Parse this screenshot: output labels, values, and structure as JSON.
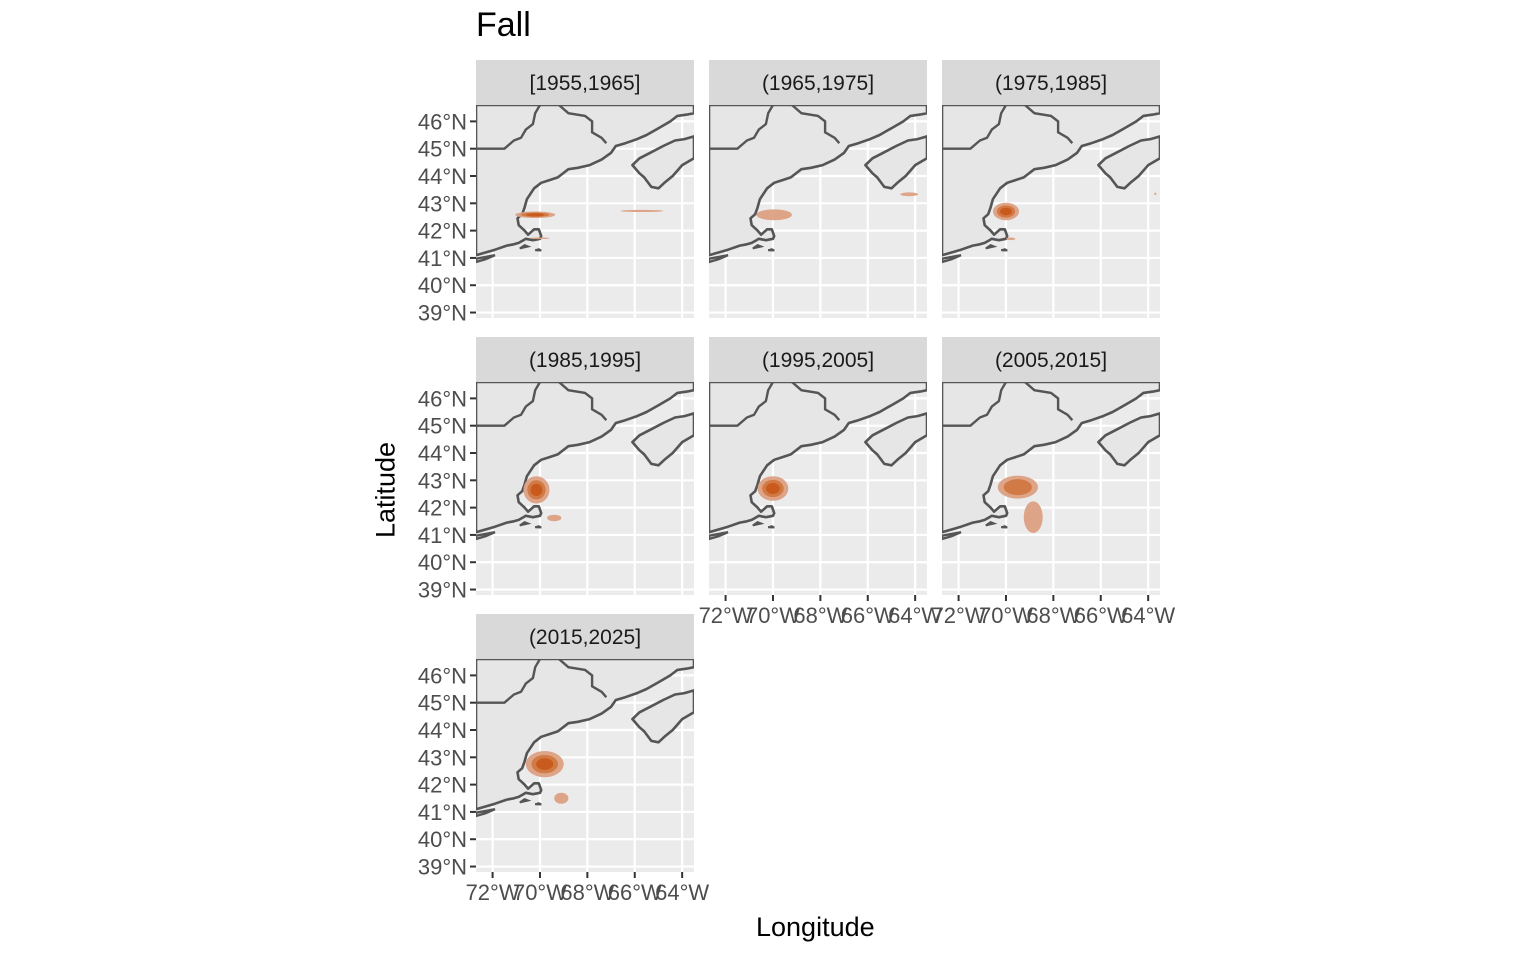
{
  "title": "Fall",
  "x_axis_title": "Longitude",
  "y_axis_title": "Latitude",
  "colors": {
    "panel_bg": "#ebebeb",
    "grid": "#ffffff",
    "strip_bg": "#d9d9d9",
    "land": "#e6e6e6",
    "coastline": "#555555",
    "density_low": "#dca083",
    "density_mid": "#d0763f",
    "density_high": "#c8561a"
  },
  "chart_data": {
    "type": "faceted density map",
    "facet_variable": "decade",
    "xlim": [
      -72.7,
      -63.5
    ],
    "ylim": [
      38.8,
      46.6
    ],
    "x_ticks": [
      -72,
      -70,
      -68,
      -66,
      -64
    ],
    "x_tick_labels": [
      "72°W",
      "70°W",
      "68°W",
      "66°W",
      "64°W"
    ],
    "y_ticks": [
      46,
      45,
      44,
      43,
      42,
      41,
      40,
      39
    ],
    "y_tick_labels": [
      "46°N",
      "45°N",
      "44°N",
      "43°N",
      "42°N",
      "41°N",
      "40°N",
      "39°N"
    ],
    "facets": [
      {
        "label": "[1955,1965]",
        "blobs": [
          {
            "lon": -70.2,
            "lat": 42.58,
            "rx": 0.85,
            "ry": 0.12,
            "level": 3
          },
          {
            "lon": -65.7,
            "lat": 42.72,
            "rx": 0.9,
            "ry": 0.04,
            "level": 1
          },
          {
            "lon": -70.0,
            "lat": 41.72,
            "rx": 0.4,
            "ry": 0.03,
            "level": 1
          }
        ]
      },
      {
        "label": "(1965,1975]",
        "blobs": [
          {
            "lon": -69.95,
            "lat": 42.58,
            "rx": 0.75,
            "ry": 0.2,
            "level": 1
          },
          {
            "lon": -64.25,
            "lat": 43.33,
            "rx": 0.38,
            "ry": 0.07,
            "level": 1
          }
        ]
      },
      {
        "label": "(1975,1985]",
        "blobs": [
          {
            "lon": -70.0,
            "lat": 42.7,
            "rx": 0.55,
            "ry": 0.32,
            "level": 3
          },
          {
            "lon": -69.8,
            "lat": 41.7,
            "rx": 0.2,
            "ry": 0.05,
            "level": 1
          },
          {
            "lon": -63.7,
            "lat": 43.35,
            "rx": 0.05,
            "ry": 0.04,
            "level": 1
          }
        ]
      },
      {
        "label": "(1985,1995]",
        "blobs": [
          {
            "lon": -70.15,
            "lat": 42.65,
            "rx": 0.55,
            "ry": 0.5,
            "level": 3
          },
          {
            "lon": -69.4,
            "lat": 41.62,
            "rx": 0.3,
            "ry": 0.12,
            "level": 1
          }
        ]
      },
      {
        "label": "(1995,2005]",
        "blobs": [
          {
            "lon": -70.0,
            "lat": 42.7,
            "rx": 0.65,
            "ry": 0.45,
            "level": 3
          }
        ]
      },
      {
        "label": "(2005,2015]",
        "blobs": [
          {
            "lon": -69.5,
            "lat": 42.75,
            "rx": 0.85,
            "ry": 0.42,
            "level": 2
          },
          {
            "lon": -68.85,
            "lat": 41.65,
            "rx": 0.4,
            "ry": 0.58,
            "level": 1
          }
        ]
      },
      {
        "label": "(2015,2025]",
        "blobs": [
          {
            "lon": -69.8,
            "lat": 42.75,
            "rx": 0.8,
            "ry": 0.48,
            "level": 3
          },
          {
            "lon": -69.1,
            "lat": 41.5,
            "rx": 0.3,
            "ry": 0.2,
            "level": 1
          }
        ]
      }
    ]
  }
}
